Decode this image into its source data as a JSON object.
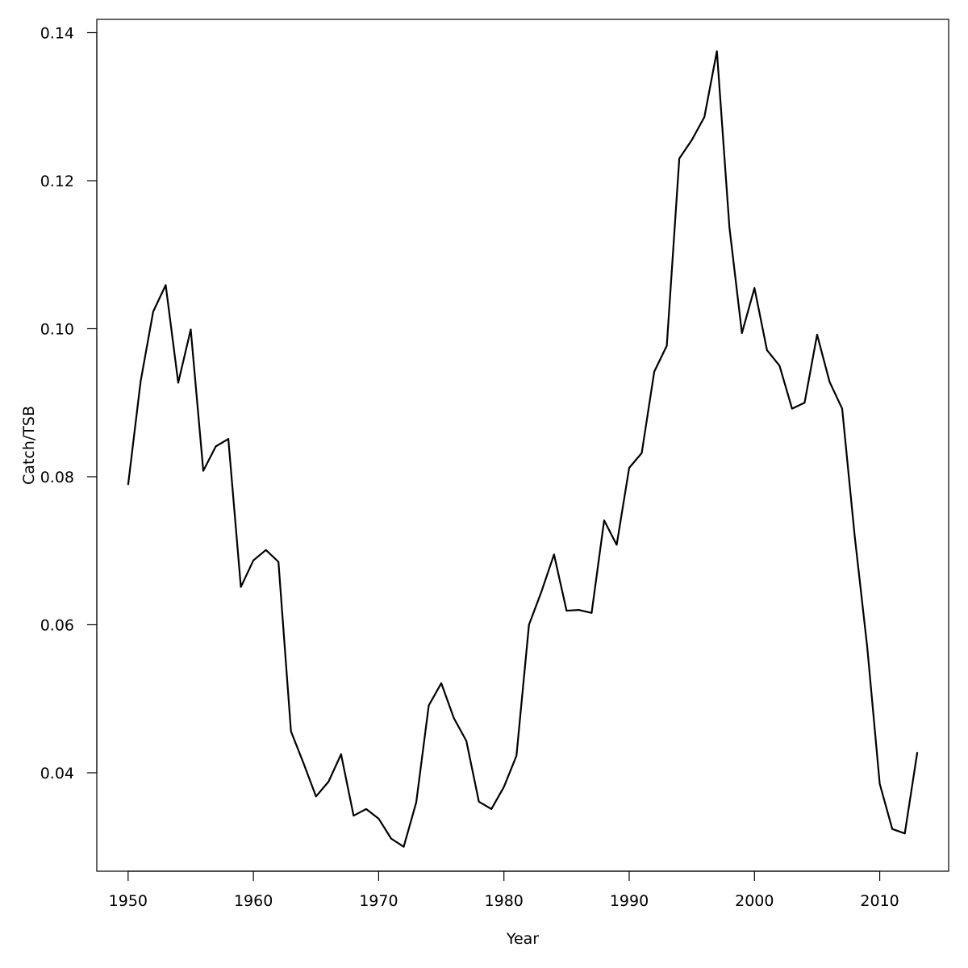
{
  "chart_data": {
    "type": "line",
    "title": "",
    "xlabel": "Year",
    "ylabel": "Catch/TSB",
    "xlim": [
      1947.5,
      2015.5
    ],
    "ylim": [
      0.0267,
      0.1418
    ],
    "x_ticks": [
      1950,
      1960,
      1970,
      1980,
      1990,
      2000,
      2010
    ],
    "x_tick_labels": [
      "1950",
      "1960",
      "1970",
      "1980",
      "1990",
      "2000",
      "2010"
    ],
    "y_ticks": [
      0.04,
      0.06,
      0.08,
      0.1,
      0.12,
      0.14
    ],
    "y_tick_labels": [
      "0.04",
      "0.06",
      "0.08",
      "0.10",
      "0.12",
      "0.14"
    ],
    "grid": false,
    "line_color": "#000000",
    "series": [
      {
        "x": [
          1950,
          1951,
          1952,
          1953,
          1954,
          1955,
          1956,
          1957,
          1958,
          1959,
          1960,
          1961,
          1962,
          1963,
          1964,
          1965,
          1966,
          1967,
          1968,
          1969,
          1970,
          1971,
          1972,
          1973,
          1974,
          1975,
          1976,
          1977,
          1978,
          1979,
          1980,
          1981,
          1982,
          1983,
          1984,
          1985,
          1986,
          1987,
          1988,
          1989,
          1990,
          1991,
          1992,
          1993,
          1994,
          1995,
          1996,
          1997,
          1998,
          1999,
          2000,
          2001,
          2002,
          2003,
          2004,
          2005,
          2006,
          2007,
          2008,
          2009,
          2010,
          2011,
          2012,
          2013
        ],
        "values": [
          0.0789,
          0.0929,
          0.1023,
          0.1059,
          0.0927,
          0.0999,
          0.0808,
          0.0841,
          0.0851,
          0.0651,
          0.0687,
          0.0701,
          0.0685,
          0.0456,
          0.0413,
          0.0368,
          0.0388,
          0.0425,
          0.0342,
          0.0351,
          0.0338,
          0.0311,
          0.03,
          0.036,
          0.0491,
          0.0521,
          0.0474,
          0.0443,
          0.0361,
          0.0351,
          0.0381,
          0.0423,
          0.06,
          0.0645,
          0.0695,
          0.0619,
          0.062,
          0.0616,
          0.0741,
          0.0708,
          0.0812,
          0.0832,
          0.0942,
          0.0977,
          0.123,
          0.1255,
          0.1286,
          0.1375,
          0.1137,
          0.0994,
          0.1055,
          0.0971,
          0.095,
          0.0892,
          0.09,
          0.0992,
          0.0928,
          0.0892,
          0.072,
          0.057,
          0.0385,
          0.0324,
          0.0318,
          0.0428
        ]
      }
    ]
  }
}
